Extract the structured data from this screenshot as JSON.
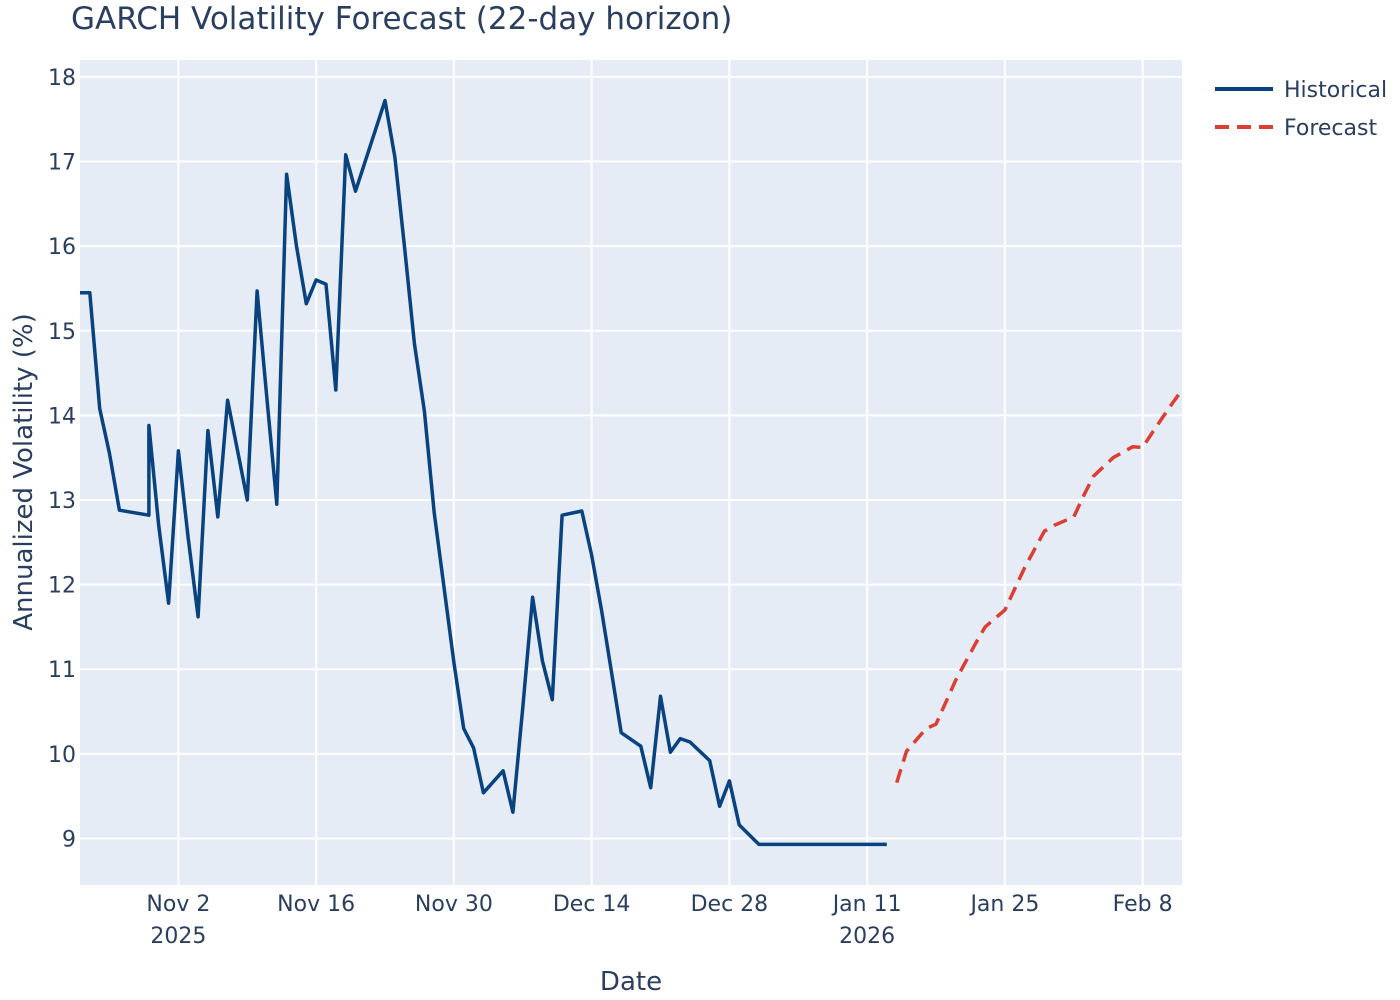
{
  "chart_data": {
    "type": "line",
    "title": "GARCH Volatility Forecast (22-day horizon)",
    "xlabel": "Date",
    "ylabel": "Annualized Volatility (%)",
    "x_range": [
      "2025-10-23",
      "2026-02-12"
    ],
    "ylim": [
      8.45,
      18.2
    ],
    "y_ticks": [
      9,
      10,
      11,
      12,
      13,
      14,
      15,
      16,
      17,
      18
    ],
    "x_ticks": [
      {
        "date": "2025-11-02",
        "label": "Nov 2",
        "sublabel": "2025"
      },
      {
        "date": "2025-11-16",
        "label": "Nov 16",
        "sublabel": ""
      },
      {
        "date": "2025-11-30",
        "label": "Nov 30",
        "sublabel": ""
      },
      {
        "date": "2025-12-14",
        "label": "Dec 14",
        "sublabel": ""
      },
      {
        "date": "2025-12-28",
        "label": "Dec 28",
        "sublabel": ""
      },
      {
        "date": "2026-01-11",
        "label": "Jan 11",
        "sublabel": "2026"
      },
      {
        "date": "2026-01-25",
        "label": "Jan 25",
        "sublabel": ""
      },
      {
        "date": "2026-02-08",
        "label": "Feb 8",
        "sublabel": ""
      }
    ],
    "legend_position": "top-right, outside plot",
    "grid": true,
    "colors": {
      "plot_bg": "#e5ecf6",
      "grid": "#ffffff",
      "text": "#2a3f5f",
      "historical": "#08427f",
      "forecast": "#dd3e33"
    },
    "series": [
      {
        "name": "Historical",
        "style": "solid",
        "x": [
          "2025-10-23",
          "2025-10-24",
          "2025-10-25",
          "2025-10-26",
          "2025-10-27",
          "2025-10-30",
          "2025-10-30",
          "2025-10-31",
          "2025-11-01",
          "2025-11-02",
          "2025-11-03",
          "2025-11-04",
          "2025-11-05",
          "2025-11-06",
          "2025-11-07",
          "2025-11-09",
          "2025-11-10",
          "2025-11-11",
          "2025-11-12",
          "2025-11-13",
          "2025-11-14",
          "2025-11-15",
          "2025-11-16",
          "2025-11-17",
          "2025-11-18",
          "2025-11-19",
          "2025-11-20",
          "2025-11-23",
          "2025-11-24",
          "2025-11-25",
          "2025-11-26",
          "2025-11-27",
          "2025-11-28",
          "2025-11-30",
          "2025-12-01",
          "2025-12-02",
          "2025-12-03",
          "2025-12-05",
          "2025-12-06",
          "2025-12-07",
          "2025-12-08",
          "2025-12-09",
          "2025-12-10",
          "2025-12-11",
          "2025-12-13",
          "2025-12-14",
          "2025-12-15",
          "2025-12-16",
          "2025-12-17",
          "2025-12-19",
          "2025-12-20",
          "2025-12-21",
          "2025-12-22",
          "2025-12-23",
          "2025-12-24",
          "2025-12-26",
          "2025-12-27",
          "2025-12-28",
          "2025-12-29",
          "2025-12-31",
          "2026-01-02",
          "2026-01-03",
          "2026-01-04",
          "2026-01-05",
          "2026-01-06",
          "2026-01-07",
          "2026-01-09",
          "2026-01-10",
          "2026-01-11",
          "2026-01-12",
          "2026-01-13"
        ],
        "values": [
          15.45,
          15.45,
          14.08,
          13.55,
          12.88,
          12.82,
          13.88,
          12.7,
          11.78,
          13.58,
          12.55,
          11.62,
          13.82,
          12.8,
          14.18,
          13.0,
          15.47,
          14.2,
          12.95,
          16.85,
          16.0,
          15.32,
          15.6,
          15.55,
          14.3,
          17.08,
          16.65,
          17.72,
          17.05,
          15.97,
          14.84,
          14.05,
          12.85,
          11.08,
          10.3,
          10.07,
          9.54,
          9.8,
          9.31,
          10.55,
          11.85,
          11.1,
          10.64,
          12.82,
          12.87,
          12.35,
          11.7,
          10.98,
          10.25,
          10.09,
          9.6,
          10.68,
          10.02,
          10.18,
          10.14,
          9.92,
          9.38,
          9.68,
          9.16,
          8.93,
          8.93,
          8.93,
          8.93,
          8.93,
          8.93,
          8.93,
          8.93,
          8.93,
          8.93,
          8.93,
          8.93
        ]
      },
      {
        "name": "Forecast",
        "style": "dash",
        "x": [
          "2026-01-14",
          "2026-01-15",
          "2026-01-17",
          "2026-01-18",
          "2026-01-20",
          "2026-01-22",
          "2026-01-23",
          "2026-01-25",
          "2026-01-27",
          "2026-01-29",
          "2026-01-30",
          "2026-02-01",
          "2026-02-02",
          "2026-02-03",
          "2026-02-05",
          "2026-02-07",
          "2026-02-08",
          "2026-02-09",
          "2026-02-10",
          "2026-02-11",
          "2026-02-12",
          "2026-02-12"
        ],
        "values": [
          9.66,
          10.03,
          10.3,
          10.35,
          10.87,
          11.3,
          11.5,
          11.7,
          12.2,
          12.63,
          12.7,
          12.8,
          13.05,
          13.28,
          13.5,
          13.63,
          13.62,
          13.8,
          13.97,
          14.14,
          14.3,
          14.3
        ]
      }
    ]
  }
}
